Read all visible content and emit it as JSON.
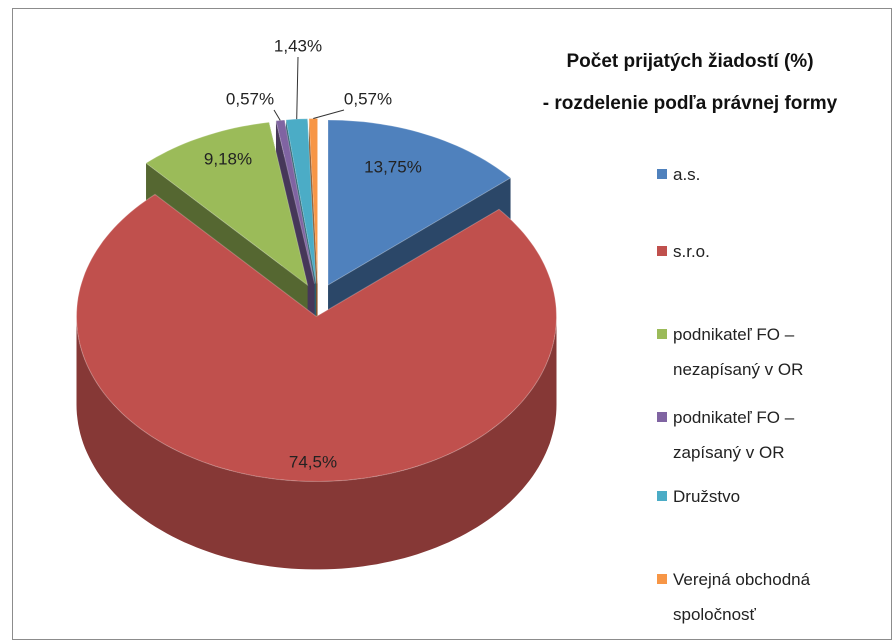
{
  "chart_data": {
    "type": "pie3d",
    "title": "Počet prijatých žiadostí (%)",
    "subtitle": "- rozdelenie podľa právnej formy",
    "categories": [
      "a.s.",
      "s.r.o.",
      "podnikateľ FO – nezapísaný v OR",
      "podnikateľ FO – zapísaný v OR",
      "Družstvo",
      "Verejná obchodná spoločnosť"
    ],
    "values": [
      13.75,
      74.5,
      9.18,
      0.57,
      1.43,
      0.57
    ],
    "value_labels": [
      "13,75%",
      "74,5%",
      "9,18%",
      "0,57%",
      "1,43%",
      "0,57%"
    ],
    "colors": [
      "#4f81bd",
      "#c0504d",
      "#9bbb59",
      "#8064a2",
      "#4bacc6",
      "#f79646"
    ],
    "legend": "right"
  }
}
